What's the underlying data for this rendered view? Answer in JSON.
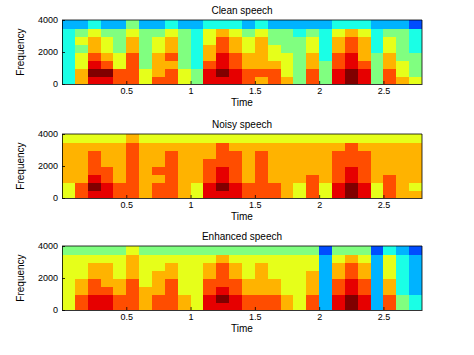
{
  "chart_data": [
    {
      "type": "heatmap",
      "title": "Clean speech",
      "xlabel": "Time",
      "ylabel": "Frequency",
      "xlim": [
        0,
        2.8
      ],
      "ylim": [
        0,
        4000
      ],
      "xticks": [
        0.5,
        1,
        1.5,
        2,
        2.5
      ],
      "yticks": [
        0,
        2000,
        4000
      ],
      "x_bins": [
        0,
        0.1,
        0.2,
        0.3,
        0.4,
        0.5,
        0.6,
        0.7,
        0.8,
        0.9,
        1.0,
        1.1,
        1.2,
        1.3,
        1.4,
        1.5,
        1.6,
        1.7,
        1.8,
        1.9,
        2.0,
        2.1,
        2.2,
        2.3,
        2.4,
        2.5,
        2.6,
        2.7,
        2.8
      ],
      "y_bins": [
        0,
        500,
        1000,
        1500,
        2000,
        2500,
        3000,
        3500,
        4000
      ],
      "value_range": [
        0,
        10
      ],
      "cells": [
        [
          4,
          7,
          9,
          9,
          8,
          8,
          6,
          8,
          8,
          6,
          5,
          9,
          9,
          9,
          8,
          7,
          8,
          7,
          5,
          8,
          5,
          9,
          10,
          9,
          5,
          8,
          7,
          6
        ],
        [
          4,
          7,
          10,
          10,
          8,
          8,
          6,
          7,
          8,
          6,
          5,
          9,
          10,
          9,
          8,
          8,
          8,
          6,
          5,
          8,
          5,
          9,
          10,
          9,
          5,
          8,
          6,
          5
        ],
        [
          4,
          6,
          9,
          8,
          6,
          8,
          5,
          7,
          7,
          5,
          4,
          8,
          9,
          8,
          7,
          7,
          7,
          6,
          5,
          7,
          5,
          8,
          9,
          8,
          5,
          7,
          6,
          5
        ],
        [
          4,
          6,
          8,
          7,
          6,
          8,
          5,
          7,
          8,
          5,
          4,
          7,
          9,
          8,
          7,
          7,
          6,
          6,
          5,
          7,
          4,
          8,
          9,
          7,
          5,
          7,
          5,
          5
        ],
        [
          4,
          5,
          7,
          6,
          5,
          7,
          5,
          6,
          7,
          5,
          4,
          7,
          8,
          7,
          6,
          7,
          6,
          5,
          5,
          6,
          4,
          7,
          8,
          7,
          4,
          6,
          5,
          4
        ],
        [
          4,
          6,
          7,
          6,
          5,
          7,
          5,
          6,
          7,
          5,
          4,
          6,
          8,
          7,
          6,
          7,
          5,
          5,
          5,
          6,
          4,
          7,
          8,
          7,
          4,
          6,
          5,
          4
        ],
        [
          4,
          5,
          6,
          5,
          5,
          6,
          5,
          5,
          6,
          5,
          4,
          6,
          7,
          6,
          5,
          6,
          5,
          5,
          4,
          5,
          4,
          6,
          7,
          6,
          4,
          5,
          5,
          4
        ],
        [
          3,
          3,
          4,
          3,
          3,
          5,
          3,
          3,
          4,
          3,
          3,
          4,
          4,
          4,
          3,
          4,
          3,
          3,
          3,
          3,
          3,
          4,
          4,
          4,
          3,
          3,
          3,
          2
        ]
      ]
    },
    {
      "type": "heatmap",
      "title": "Noisy speech",
      "xlabel": "Time",
      "ylabel": "Frequency",
      "xlim": [
        0,
        2.8
      ],
      "ylim": [
        0,
        4000
      ],
      "xticks": [
        0.5,
        1,
        1.5,
        2,
        2.5
      ],
      "yticks": [
        0,
        2000,
        4000
      ],
      "x_bins": [
        0,
        0.1,
        0.2,
        0.3,
        0.4,
        0.5,
        0.6,
        0.7,
        0.8,
        0.9,
        1.0,
        1.1,
        1.2,
        1.3,
        1.4,
        1.5,
        1.6,
        1.7,
        1.8,
        1.9,
        2.0,
        2.1,
        2.2,
        2.3,
        2.4,
        2.5,
        2.6,
        2.7,
        2.8
      ],
      "y_bins": [
        0,
        500,
        1000,
        1500,
        2000,
        2500,
        3000,
        3500,
        4000
      ],
      "value_range": [
        0,
        10
      ],
      "cells": [
        [
          6,
          8,
          9,
          9,
          8,
          8,
          7,
          8,
          8,
          7,
          6,
          9,
          9,
          9,
          8,
          8,
          8,
          7,
          6,
          8,
          6,
          9,
          10,
          9,
          6,
          8,
          7,
          7
        ],
        [
          6,
          8,
          10,
          9,
          8,
          8,
          7,
          8,
          8,
          7,
          6,
          9,
          10,
          9,
          8,
          8,
          8,
          7,
          6,
          8,
          6,
          9,
          10,
          9,
          6,
          8,
          7,
          6
        ],
        [
          7,
          7,
          9,
          8,
          7,
          8,
          7,
          7,
          8,
          7,
          7,
          8,
          9,
          8,
          7,
          8,
          7,
          7,
          7,
          8,
          7,
          8,
          9,
          8,
          7,
          8,
          7,
          7
        ],
        [
          7,
          7,
          8,
          8,
          7,
          8,
          7,
          8,
          8,
          7,
          7,
          8,
          9,
          8,
          7,
          8,
          7,
          7,
          7,
          7,
          7,
          8,
          9,
          8,
          7,
          7,
          7,
          7
        ],
        [
          7,
          7,
          8,
          7,
          7,
          8,
          7,
          7,
          8,
          7,
          7,
          8,
          8,
          8,
          7,
          8,
          7,
          7,
          7,
          7,
          7,
          8,
          8,
          8,
          7,
          7,
          7,
          7
        ],
        [
          7,
          7,
          8,
          7,
          7,
          8,
          7,
          7,
          8,
          7,
          7,
          7,
          8,
          8,
          7,
          8,
          7,
          7,
          7,
          7,
          7,
          8,
          8,
          8,
          7,
          7,
          7,
          7
        ],
        [
          7,
          7,
          7,
          7,
          7,
          8,
          7,
          7,
          7,
          7,
          7,
          7,
          8,
          7,
          7,
          7,
          7,
          7,
          7,
          7,
          7,
          7,
          8,
          7,
          7,
          7,
          7,
          7
        ],
        [
          6,
          6,
          6,
          6,
          6,
          7,
          6,
          6,
          6,
          6,
          6,
          6,
          6,
          6,
          6,
          6,
          6,
          6,
          6,
          6,
          6,
          6,
          6,
          6,
          6,
          6,
          6,
          6
        ]
      ]
    },
    {
      "type": "heatmap",
      "title": "Enhanced speech",
      "xlabel": "Time",
      "ylabel": "Frequency",
      "xlim": [
        0,
        2.8
      ],
      "ylim": [
        0,
        4000
      ],
      "xticks": [
        0.5,
        1,
        1.5,
        2,
        2.5
      ],
      "yticks": [
        0,
        2000,
        4000
      ],
      "x_bins": [
        0,
        0.1,
        0.2,
        0.3,
        0.4,
        0.5,
        0.6,
        0.7,
        0.8,
        0.9,
        1.0,
        1.1,
        1.2,
        1.3,
        1.4,
        1.5,
        1.6,
        1.7,
        1.8,
        1.9,
        2.0,
        2.1,
        2.2,
        2.3,
        2.4,
        2.5,
        2.6,
        2.7,
        2.8
      ],
      "y_bins": [
        0,
        500,
        1000,
        1500,
        2000,
        2500,
        3000,
        3500,
        4000
      ],
      "value_range": [
        0,
        10
      ],
      "cells": [
        [
          6,
          8,
          9,
          9,
          8,
          8,
          7,
          8,
          8,
          7,
          6,
          9,
          9,
          9,
          8,
          8,
          8,
          7,
          6,
          8,
          3,
          9,
          10,
          9,
          3,
          8,
          5,
          4
        ],
        [
          6,
          8,
          9,
          9,
          8,
          8,
          7,
          8,
          8,
          7,
          6,
          9,
          10,
          9,
          8,
          8,
          8,
          7,
          6,
          8,
          3,
          9,
          10,
          9,
          3,
          8,
          5,
          4
        ],
        [
          6,
          7,
          8,
          8,
          7,
          8,
          7,
          7,
          8,
          6,
          6,
          8,
          9,
          8,
          7,
          7,
          7,
          6,
          6,
          7,
          3,
          8,
          9,
          8,
          3,
          7,
          4,
          3
        ],
        [
          6,
          7,
          8,
          7,
          7,
          8,
          6,
          7,
          8,
          6,
          6,
          8,
          8,
          8,
          7,
          7,
          7,
          6,
          6,
          7,
          3,
          8,
          9,
          8,
          3,
          7,
          4,
          3
        ],
        [
          6,
          6,
          7,
          7,
          6,
          7,
          6,
          7,
          7,
          6,
          6,
          7,
          8,
          7,
          6,
          7,
          6,
          6,
          6,
          7,
          3,
          7,
          8,
          7,
          3,
          6,
          4,
          3
        ],
        [
          6,
          6,
          7,
          7,
          6,
          7,
          6,
          6,
          7,
          6,
          6,
          7,
          8,
          7,
          6,
          7,
          6,
          6,
          6,
          6,
          3,
          7,
          8,
          7,
          3,
          6,
          4,
          3
        ],
        [
          6,
          6,
          6,
          6,
          6,
          7,
          6,
          6,
          6,
          6,
          6,
          6,
          7,
          6,
          6,
          6,
          6,
          6,
          6,
          6,
          3,
          6,
          7,
          6,
          3,
          6,
          4,
          3
        ],
        [
          5,
          5,
          5,
          5,
          5,
          6,
          5,
          5,
          5,
          5,
          5,
          5,
          5,
          5,
          5,
          5,
          5,
          5,
          5,
          5,
          2,
          5,
          5,
          5,
          2,
          4,
          3,
          2
        ]
      ]
    }
  ]
}
